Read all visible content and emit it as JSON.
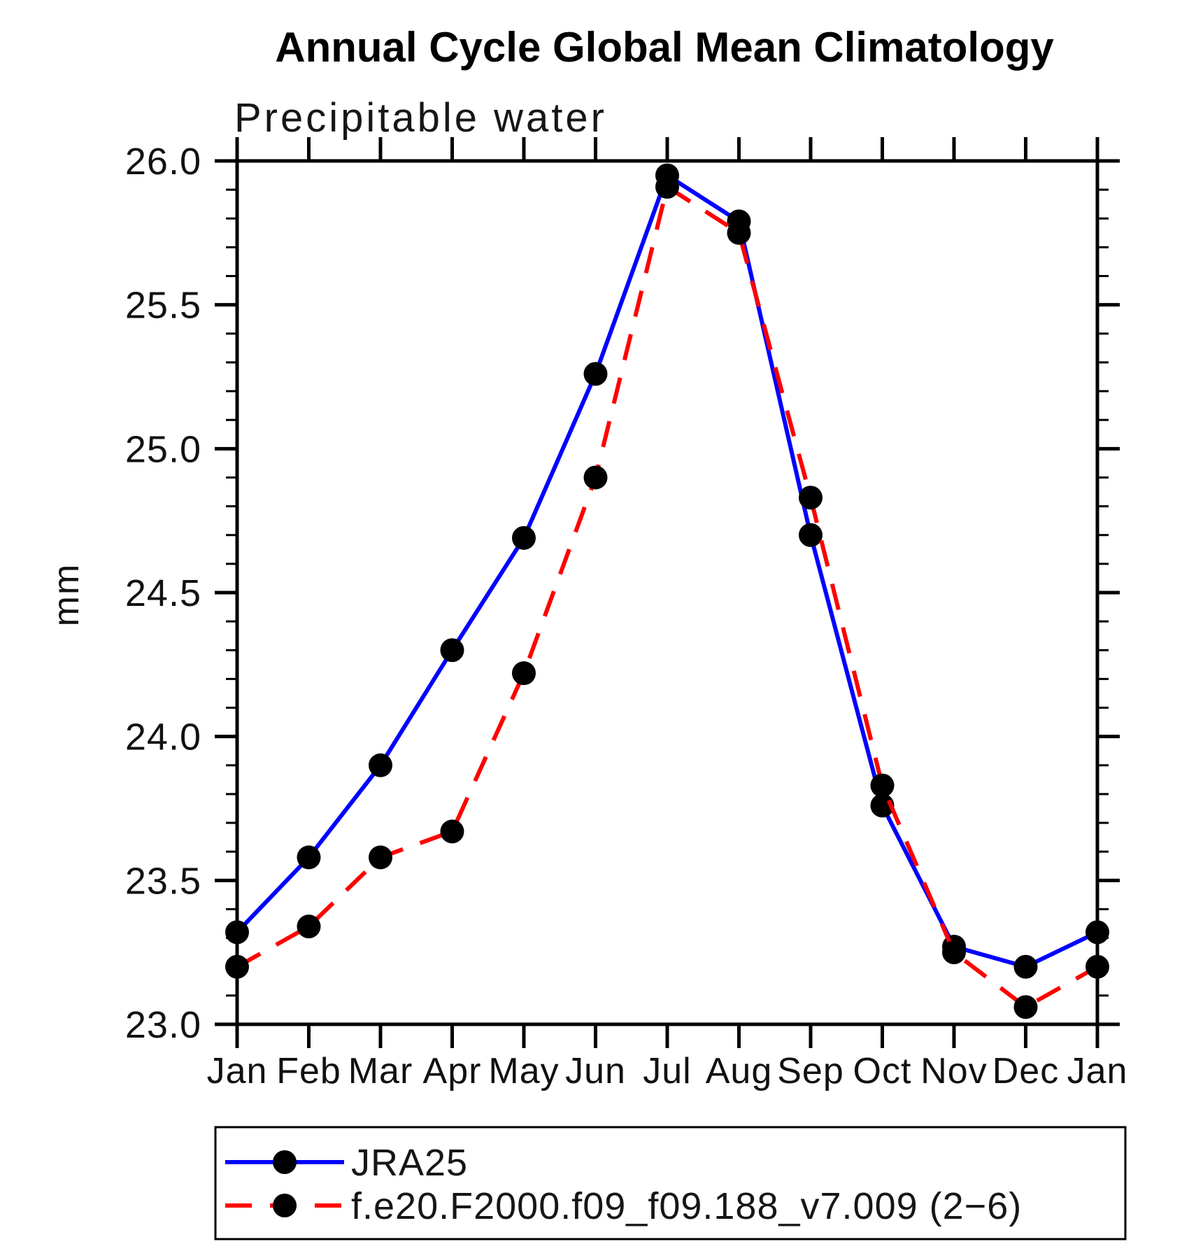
{
  "page": {
    "background": "#ffffff"
  },
  "chart_data": {
    "type": "line",
    "title": "Annual Cycle Global Mean Climatology",
    "subtitle": "Precipitable water",
    "xlabel": "",
    "ylabel": "mm",
    "categories": [
      "Jan",
      "Feb",
      "Mar",
      "Apr",
      "May",
      "Jun",
      "Jul",
      "Aug",
      "Sep",
      "Oct",
      "Nov",
      "Dec",
      "Jan"
    ],
    "series": [
      {
        "name": "JRA25",
        "color": "#0000ff",
        "line_style": "solid",
        "marker": "filled-circle",
        "marker_color": "#000000",
        "values": [
          23.32,
          23.58,
          23.9,
          24.3,
          24.69,
          25.26,
          25.95,
          25.79,
          24.7,
          23.76,
          23.27,
          23.2,
          23.32
        ]
      },
      {
        "name": "f.e20.F2000.f09_f09.188_v7.009 (2−6)",
        "color": "#ff0000",
        "line_style": "dashed",
        "marker": "filled-circle",
        "marker_color": "#000000",
        "values": [
          23.2,
          23.34,
          23.58,
          23.67,
          24.22,
          24.9,
          25.91,
          25.75,
          24.83,
          23.83,
          23.25,
          23.06,
          23.2
        ]
      }
    ],
    "ylim": [
      23.0,
      26.0
    ],
    "ytick_major_step": 0.5,
    "ytick_minor_step": 0.1,
    "ytick_label_format": "one-decimal",
    "grid": false,
    "axis_style": "box-with-outward-ticks",
    "legend_position": "bottom-left-box"
  }
}
